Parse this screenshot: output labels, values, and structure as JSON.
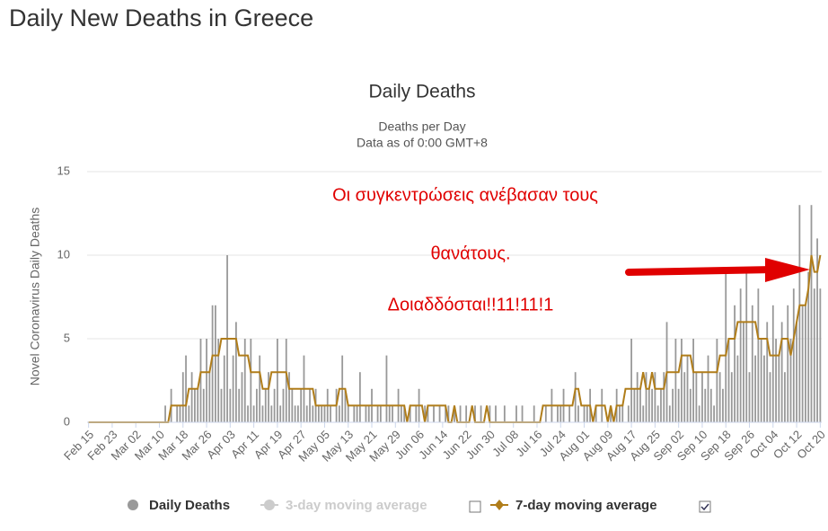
{
  "page_title": "Daily New Deaths in Greece",
  "chart_data": {
    "type": "bar",
    "title": "Daily Deaths",
    "subtitle": [
      "Deaths per Day",
      "Data as of 0:00 GMT+8"
    ],
    "y_label": "Novel Coronavirus Daily Deaths",
    "annotations": [
      "Οι συγκεντρώσεις ανέβασαν τους",
      "θανάτους.",
      "Δοιαδδόσται!!11!11!1"
    ],
    "ylim": [
      0,
      15
    ],
    "yticks": [
      0,
      5,
      10,
      15
    ],
    "grid": true,
    "categories": [
      "Feb 15",
      null,
      null,
      null,
      null,
      null,
      null,
      null,
      "Feb 23",
      null,
      null,
      null,
      null,
      null,
      null,
      null,
      "Mar 02",
      null,
      null,
      null,
      null,
      null,
      null,
      null,
      "Mar 10",
      null,
      null,
      null,
      null,
      null,
      null,
      null,
      "Mar 18",
      null,
      null,
      null,
      null,
      null,
      null,
      null,
      "Mar 26",
      null,
      null,
      null,
      null,
      null,
      null,
      null,
      "Apr 03",
      null,
      null,
      null,
      null,
      null,
      null,
      null,
      "Apr 11",
      null,
      null,
      null,
      null,
      null,
      null,
      null,
      "Apr 19",
      null,
      null,
      null,
      null,
      null,
      null,
      null,
      "Apr 27",
      null,
      null,
      null,
      null,
      null,
      null,
      null,
      "May 05",
      null,
      null,
      null,
      null,
      null,
      null,
      null,
      "May 13",
      null,
      null,
      null,
      null,
      null,
      null,
      null,
      "May 21",
      null,
      null,
      null,
      null,
      null,
      null,
      null,
      "May 29",
      null,
      null,
      null,
      null,
      null,
      null,
      null,
      "Jun 06",
      null,
      null,
      null,
      null,
      null,
      null,
      null,
      "Jun 14",
      null,
      null,
      null,
      null,
      null,
      null,
      null,
      "Jun 22",
      null,
      null,
      null,
      null,
      null,
      null,
      null,
      "Jun 30",
      null,
      null,
      null,
      null,
      null,
      null,
      null,
      "Jul 08",
      null,
      null,
      null,
      null,
      null,
      null,
      null,
      "Jul 16",
      null,
      null,
      null,
      null,
      null,
      null,
      null,
      "Jul 24",
      null,
      null,
      null,
      null,
      null,
      null,
      null,
      "Aug 01",
      null,
      null,
      null,
      null,
      null,
      null,
      null,
      "Aug 09",
      null,
      null,
      null,
      null,
      null,
      null,
      null,
      "Aug 17",
      null,
      null,
      null,
      null,
      null,
      null,
      null,
      "Aug 25",
      null,
      null,
      null,
      null,
      null,
      null,
      null,
      "Sep 02",
      null,
      null,
      null,
      null,
      null,
      null,
      null,
      "Sep 10",
      null,
      null,
      null,
      null,
      null,
      null,
      null,
      "Sep 18",
      null,
      null,
      null,
      null,
      null,
      null,
      null,
      "Sep 26",
      null,
      null,
      null,
      null,
      null,
      null,
      null,
      "Oct 04",
      null,
      null,
      null,
      null,
      null,
      null,
      null,
      "Oct 12",
      null,
      null,
      null,
      null,
      null,
      null,
      null,
      "Oct 20"
    ],
    "series": [
      {
        "name": "Daily Deaths",
        "type": "bar",
        "color": "#999999",
        "values": [
          0,
          0,
          0,
          0,
          0,
          0,
          0,
          0,
          0,
          0,
          0,
          0,
          0,
          0,
          0,
          0,
          0,
          0,
          0,
          0,
          0,
          0,
          0,
          0,
          0,
          0,
          1,
          0,
          2,
          0,
          1,
          1,
          3,
          4,
          1,
          3,
          2,
          2,
          5,
          2,
          5,
          3,
          7,
          7,
          5,
          2,
          4,
          10,
          2,
          4,
          6,
          2,
          3,
          5,
          1,
          5,
          1,
          2,
          4,
          1,
          2,
          3,
          1,
          2,
          5,
          1,
          2,
          5,
          3,
          2,
          1,
          1,
          2,
          4,
          1,
          2,
          1,
          2,
          1,
          1,
          1,
          2,
          1,
          0,
          2,
          1,
          4,
          2,
          1,
          0,
          1,
          1,
          3,
          0,
          1,
          1,
          2,
          0,
          1,
          1,
          0,
          4,
          1,
          1,
          0,
          2,
          1,
          1,
          0,
          1,
          0,
          1,
          2,
          0,
          1,
          1,
          0,
          1,
          0,
          1,
          0,
          1,
          1,
          0,
          1,
          0,
          1,
          0,
          1,
          0,
          0,
          1,
          0,
          1,
          0,
          0,
          1,
          0,
          1,
          0,
          0,
          1,
          0,
          0,
          0,
          1,
          0,
          1,
          0,
          0,
          0,
          1,
          0,
          0,
          0,
          1,
          0,
          2,
          0,
          1,
          1,
          2,
          0,
          1,
          0,
          3,
          1,
          0,
          1,
          1,
          2,
          0,
          1,
          0,
          2,
          0,
          0,
          1,
          0,
          2,
          1,
          1,
          0,
          1,
          5,
          2,
          3,
          2,
          1,
          3,
          2,
          2,
          3,
          1,
          2,
          3,
          6,
          1,
          2,
          5,
          2,
          5,
          3,
          4,
          2,
          5,
          3,
          1,
          3,
          2,
          4,
          2,
          1,
          5,
          3,
          2,
          9,
          5,
          3,
          7,
          4,
          8,
          6,
          9,
          3,
          7,
          4,
          8,
          5,
          4,
          6,
          3,
          7,
          5,
          4,
          6,
          3,
          7,
          5,
          8,
          6,
          13,
          7,
          7,
          9,
          13,
          8,
          11,
          8
        ]
      },
      {
        "name": "3-day moving average",
        "type": "line",
        "color": "#cccccc",
        "visible": false
      },
      {
        "name": "7-day moving average",
        "type": "line",
        "color": "#b07d1a",
        "values": [
          0,
          0,
          0,
          0,
          0,
          0,
          0,
          0,
          0,
          0,
          0,
          0,
          0,
          0,
          0,
          0,
          0,
          0,
          0,
          0,
          0,
          0,
          0,
          0,
          0,
          0,
          0,
          0,
          1,
          1,
          1,
          1,
          1,
          1,
          2,
          2,
          2,
          2,
          3,
          3,
          3,
          3,
          4,
          4,
          4,
          5,
          5,
          5,
          5,
          5,
          5,
          4,
          4,
          4,
          4,
          3,
          3,
          3,
          3,
          2,
          2,
          2,
          3,
          3,
          3,
          3,
          3,
          3,
          2,
          2,
          2,
          2,
          2,
          2,
          2,
          2,
          2,
          1,
          1,
          1,
          1,
          1,
          1,
          1,
          1,
          2,
          2,
          2,
          1,
          1,
          1,
          1,
          1,
          1,
          1,
          1,
          1,
          1,
          1,
          1,
          1,
          1,
          1,
          1,
          1,
          1,
          1,
          1,
          0,
          1,
          1,
          1,
          1,
          1,
          0,
          1,
          1,
          1,
          1,
          1,
          1,
          1,
          0,
          0,
          1,
          0,
          0,
          0,
          0,
          0,
          1,
          0,
          0,
          0,
          0,
          1,
          0,
          0,
          0,
          0,
          0,
          0,
          0,
          0,
          0,
          0,
          0,
          0,
          0,
          0,
          0,
          0,
          0,
          0,
          1,
          1,
          1,
          1,
          1,
          1,
          1,
          1,
          1,
          1,
          1,
          2,
          2,
          1,
          1,
          1,
          1,
          0,
          1,
          1,
          1,
          1,
          0,
          1,
          0,
          1,
          1,
          1,
          2,
          2,
          2,
          2,
          2,
          2,
          3,
          2,
          2,
          3,
          2,
          2,
          2,
          2,
          3,
          3,
          3,
          3,
          3,
          4,
          4,
          4,
          4,
          3,
          3,
          3,
          3,
          3,
          3,
          3,
          3,
          3,
          4,
          4,
          4,
          5,
          5,
          5,
          6,
          6,
          6,
          6,
          6,
          6,
          6,
          5,
          5,
          5,
          5,
          4,
          4,
          4,
          4,
          5,
          5,
          5,
          4,
          5,
          6,
          7,
          7,
          7,
          8,
          10,
          9,
          9,
          10
        ]
      }
    ]
  }
}
